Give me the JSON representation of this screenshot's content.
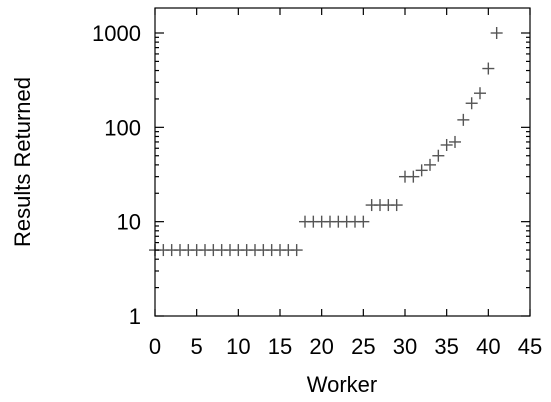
{
  "chart_data": {
    "type": "scatter",
    "title": "",
    "xlabel": "Worker",
    "ylabel": "Results Returned",
    "xlim": [
      0,
      45
    ],
    "ylim": [
      1,
      1000
    ],
    "yscale": "log",
    "grid": false,
    "legend": "none",
    "marker": "plus",
    "marker_color": "#555555",
    "x_ticks": [
      0,
      5,
      10,
      15,
      20,
      25,
      30,
      35,
      40,
      45
    ],
    "x_tick_labels": [
      "0",
      "5",
      "10",
      "15",
      "20",
      "25",
      "30",
      "35",
      "40",
      "45"
    ],
    "y_ticks": [
      1,
      10,
      100,
      1000
    ],
    "y_tick_labels": [
      "1",
      "10",
      "100",
      "1000"
    ],
    "x": [
      0,
      1,
      2,
      3,
      4,
      5,
      6,
      7,
      8,
      9,
      10,
      11,
      12,
      13,
      14,
      15,
      16,
      17,
      18,
      19,
      20,
      21,
      22,
      23,
      24,
      25,
      26,
      27,
      28,
      29,
      30,
      31,
      32,
      33,
      34,
      35,
      36,
      37,
      38,
      39,
      40,
      41
    ],
    "y": [
      5,
      5,
      5,
      5,
      5,
      5,
      5,
      5,
      5,
      5,
      5,
      5,
      5,
      5,
      5,
      5,
      5,
      5,
      10,
      10,
      10,
      10,
      10,
      10,
      10,
      10,
      15,
      15,
      15,
      15,
      30,
      30,
      35,
      40,
      50,
      65,
      70,
      120,
      180,
      230,
      420,
      1000
    ]
  }
}
